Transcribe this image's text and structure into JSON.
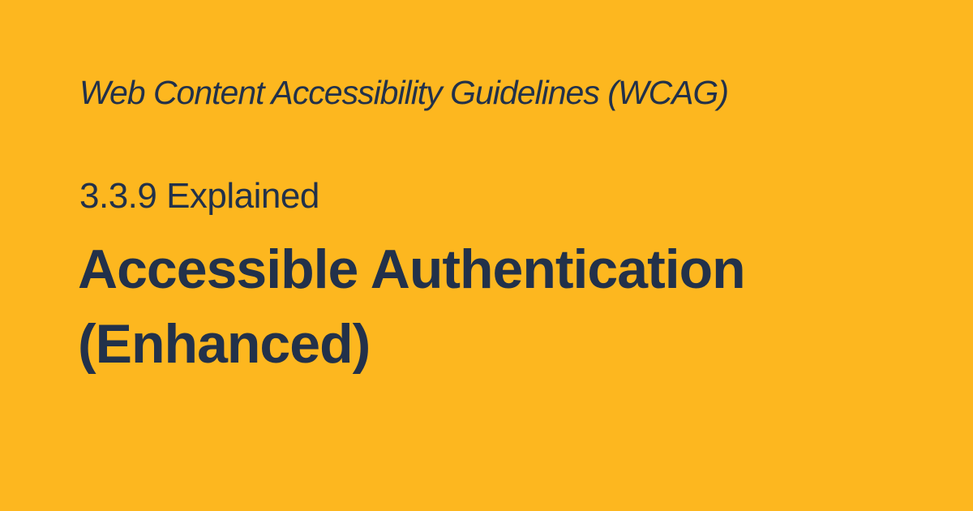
{
  "page": {
    "eyebrow": "Web Content Accessibility Guidelines (WCAG)",
    "subtitle": "3.3.9 Explained",
    "title_line_1": "Accessible Authentication",
    "title_line_2": "(Enhanced)"
  },
  "colors": {
    "background": "#FDB71F",
    "text": "#22314A"
  }
}
